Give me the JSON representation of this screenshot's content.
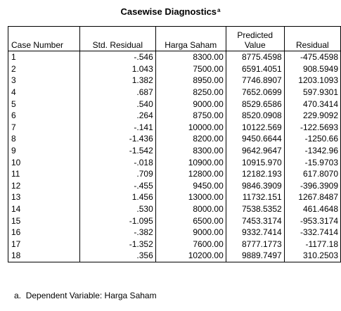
{
  "title": {
    "text": "Casewise Diagnostics",
    "superscript": "a"
  },
  "table": {
    "headers": [
      "Case Number",
      "Std. Residual",
      "Harga Saham",
      "Predicted\nValue",
      "Residual"
    ],
    "rows": [
      [
        "1",
        "-.546",
        "8300.00",
        "8775.4598",
        "-475.4598"
      ],
      [
        "2",
        "1.043",
        "7500.00",
        "6591.4051",
        "908.5949"
      ],
      [
        "3",
        "1.382",
        "8950.00",
        "7746.8907",
        "1203.1093"
      ],
      [
        "4",
        ".687",
        "8250.00",
        "7652.0699",
        "597.9301"
      ],
      [
        "5",
        ".540",
        "9000.00",
        "8529.6586",
        "470.3414"
      ],
      [
        "6",
        ".264",
        "8750.00",
        "8520.0908",
        "229.9092"
      ],
      [
        "7",
        "-.141",
        "10000.00",
        "10122.569",
        "-122.5693"
      ],
      [
        "8",
        "-1.436",
        "8200.00",
        "9450.6644",
        "-1250.66"
      ],
      [
        "9",
        "-1.542",
        "8300.00",
        "9642.9647",
        "-1342.96"
      ],
      [
        "10",
        "-.018",
        "10900.00",
        "10915.970",
        "-15.9703"
      ],
      [
        "11",
        ".709",
        "12800.00",
        "12182.193",
        "617.8070"
      ],
      [
        "12",
        "-.455",
        "9450.00",
        "9846.3909",
        "-396.3909"
      ],
      [
        "13",
        "1.456",
        "13000.00",
        "11732.151",
        "1267.8487"
      ],
      [
        "14",
        ".530",
        "8000.00",
        "7538.5352",
        "461.4648"
      ],
      [
        "15",
        "-1.095",
        "6500.00",
        "7453.3174",
        "-953.3174"
      ],
      [
        "16",
        "-.382",
        "9000.00",
        "9332.7414",
        "-332.7414"
      ],
      [
        "17",
        "-1.352",
        "7600.00",
        "8777.1773",
        "-1177.18"
      ],
      [
        "18",
        ".356",
        "10200.00",
        "9889.7497",
        "310.2503"
      ]
    ]
  },
  "footnote": {
    "marker": "a.",
    "text": "Dependent Variable: Harga Saham"
  }
}
